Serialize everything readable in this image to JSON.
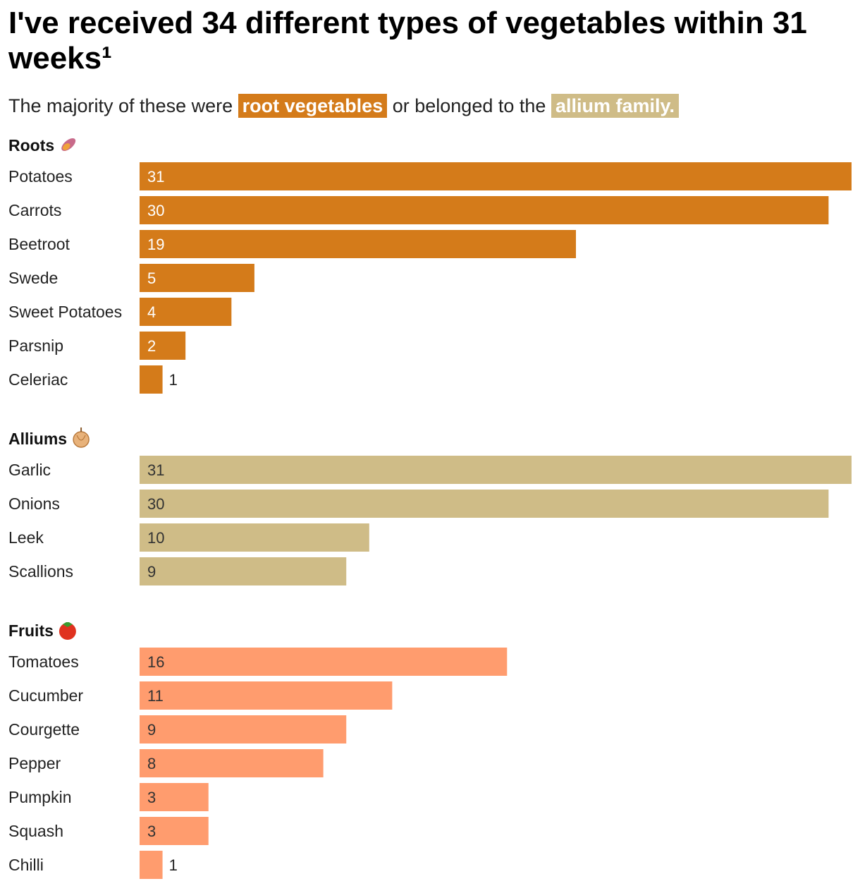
{
  "title": "I've received 34 different types of vegetables within 31 weeks¹",
  "subtitle": {
    "part1": "The majority of these were",
    "highlight1": "root vegetables",
    "part2": "or belonged to the",
    "highlight2": "allium family."
  },
  "colors": {
    "roots": "#d47b1a",
    "alliums": "#cfbc87",
    "fruits": "#ff9c6e"
  },
  "chart_data": {
    "type": "bar",
    "orientation": "horizontal",
    "xlim": [
      0,
      31
    ],
    "groups": [
      {
        "name": "Roots",
        "icon": "sweet-potato-icon",
        "color_key": "roots",
        "value_text_color": "#ffffff",
        "categories": [
          "Potatoes",
          "Carrots",
          "Beetroot",
          "Swede",
          "Sweet Potatoes",
          "Parsnip",
          "Celeriac"
        ],
        "values": [
          31,
          30,
          19,
          5,
          4,
          2,
          1
        ]
      },
      {
        "name": "Alliums",
        "icon": "onion-icon",
        "color_key": "alliums",
        "value_text_color": "#333333",
        "categories": [
          "Garlic",
          "Onions",
          "Leek",
          "Scallions"
        ],
        "values": [
          31,
          30,
          10,
          9
        ]
      },
      {
        "name": "Fruits",
        "icon": "tomato-icon",
        "color_key": "fruits",
        "value_text_color": "#333333",
        "categories": [
          "Tomatoes",
          "Cucumber",
          "Courgette",
          "Pepper",
          "Pumpkin",
          "Squash",
          "Chilli"
        ],
        "values": [
          16,
          11,
          9,
          8,
          3,
          3,
          1
        ]
      }
    ]
  }
}
